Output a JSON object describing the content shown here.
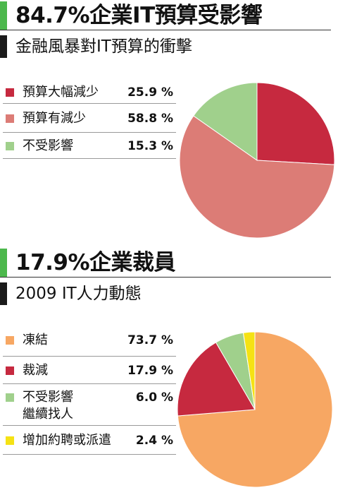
{
  "charts": [
    {
      "headline": "84.7%企業IT預算受影響",
      "subhead": "金融風暴對IT預算的衝擊",
      "chart_data": {
        "type": "pie",
        "start_angle_deg": 0,
        "slices": [
          {
            "label": "預算大幅減少",
            "value": 25.9,
            "value_label": "25.9 %",
            "color": "#c6293f"
          },
          {
            "label": "預算有減少",
            "value": 58.8,
            "value_label": "58.8 %",
            "color": "#dc7c76"
          },
          {
            "label": "不受影響",
            "value": 15.3,
            "value_label": "15.3 %",
            "color": "#a0d08c"
          }
        ]
      }
    },
    {
      "headline": "17.9%企業裁員",
      "subhead": "2009 IT人力動態",
      "chart_data": {
        "type": "pie",
        "start_angle_deg": 0,
        "slices": [
          {
            "label": "凍結",
            "value": 73.7,
            "value_label": "73.7 %",
            "color": "#f7a763"
          },
          {
            "label": "裁減",
            "value": 17.9,
            "value_label": "17.9 %",
            "color": "#c6293f"
          },
          {
            "label": "不受影響",
            "label_line2": "繼續找人",
            "value": 6.0,
            "value_label": "6.0 %",
            "color": "#a0d08c"
          },
          {
            "label": "增加約聘或派遣",
            "value": 2.4,
            "value_label": "2.4 %",
            "color": "#f5e214"
          }
        ]
      }
    }
  ]
}
